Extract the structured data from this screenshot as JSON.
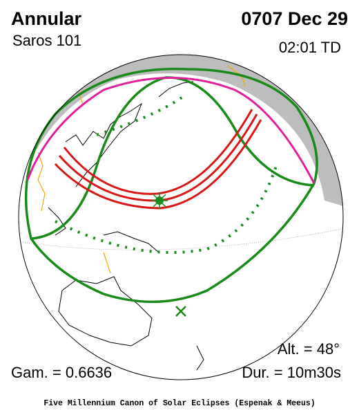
{
  "header": {
    "type": "Annular",
    "saros": "Saros 101",
    "date": "0707 Dec 29",
    "time": "02:01 TD"
  },
  "stats": {
    "altitude": "Alt. = 48°",
    "gamma": "Gam. = 0.6636",
    "duration": "Dur. = 10m30s"
  },
  "footer": "Five Millennium Canon of Solar Eclipses (Espenak & Meeus)"
}
